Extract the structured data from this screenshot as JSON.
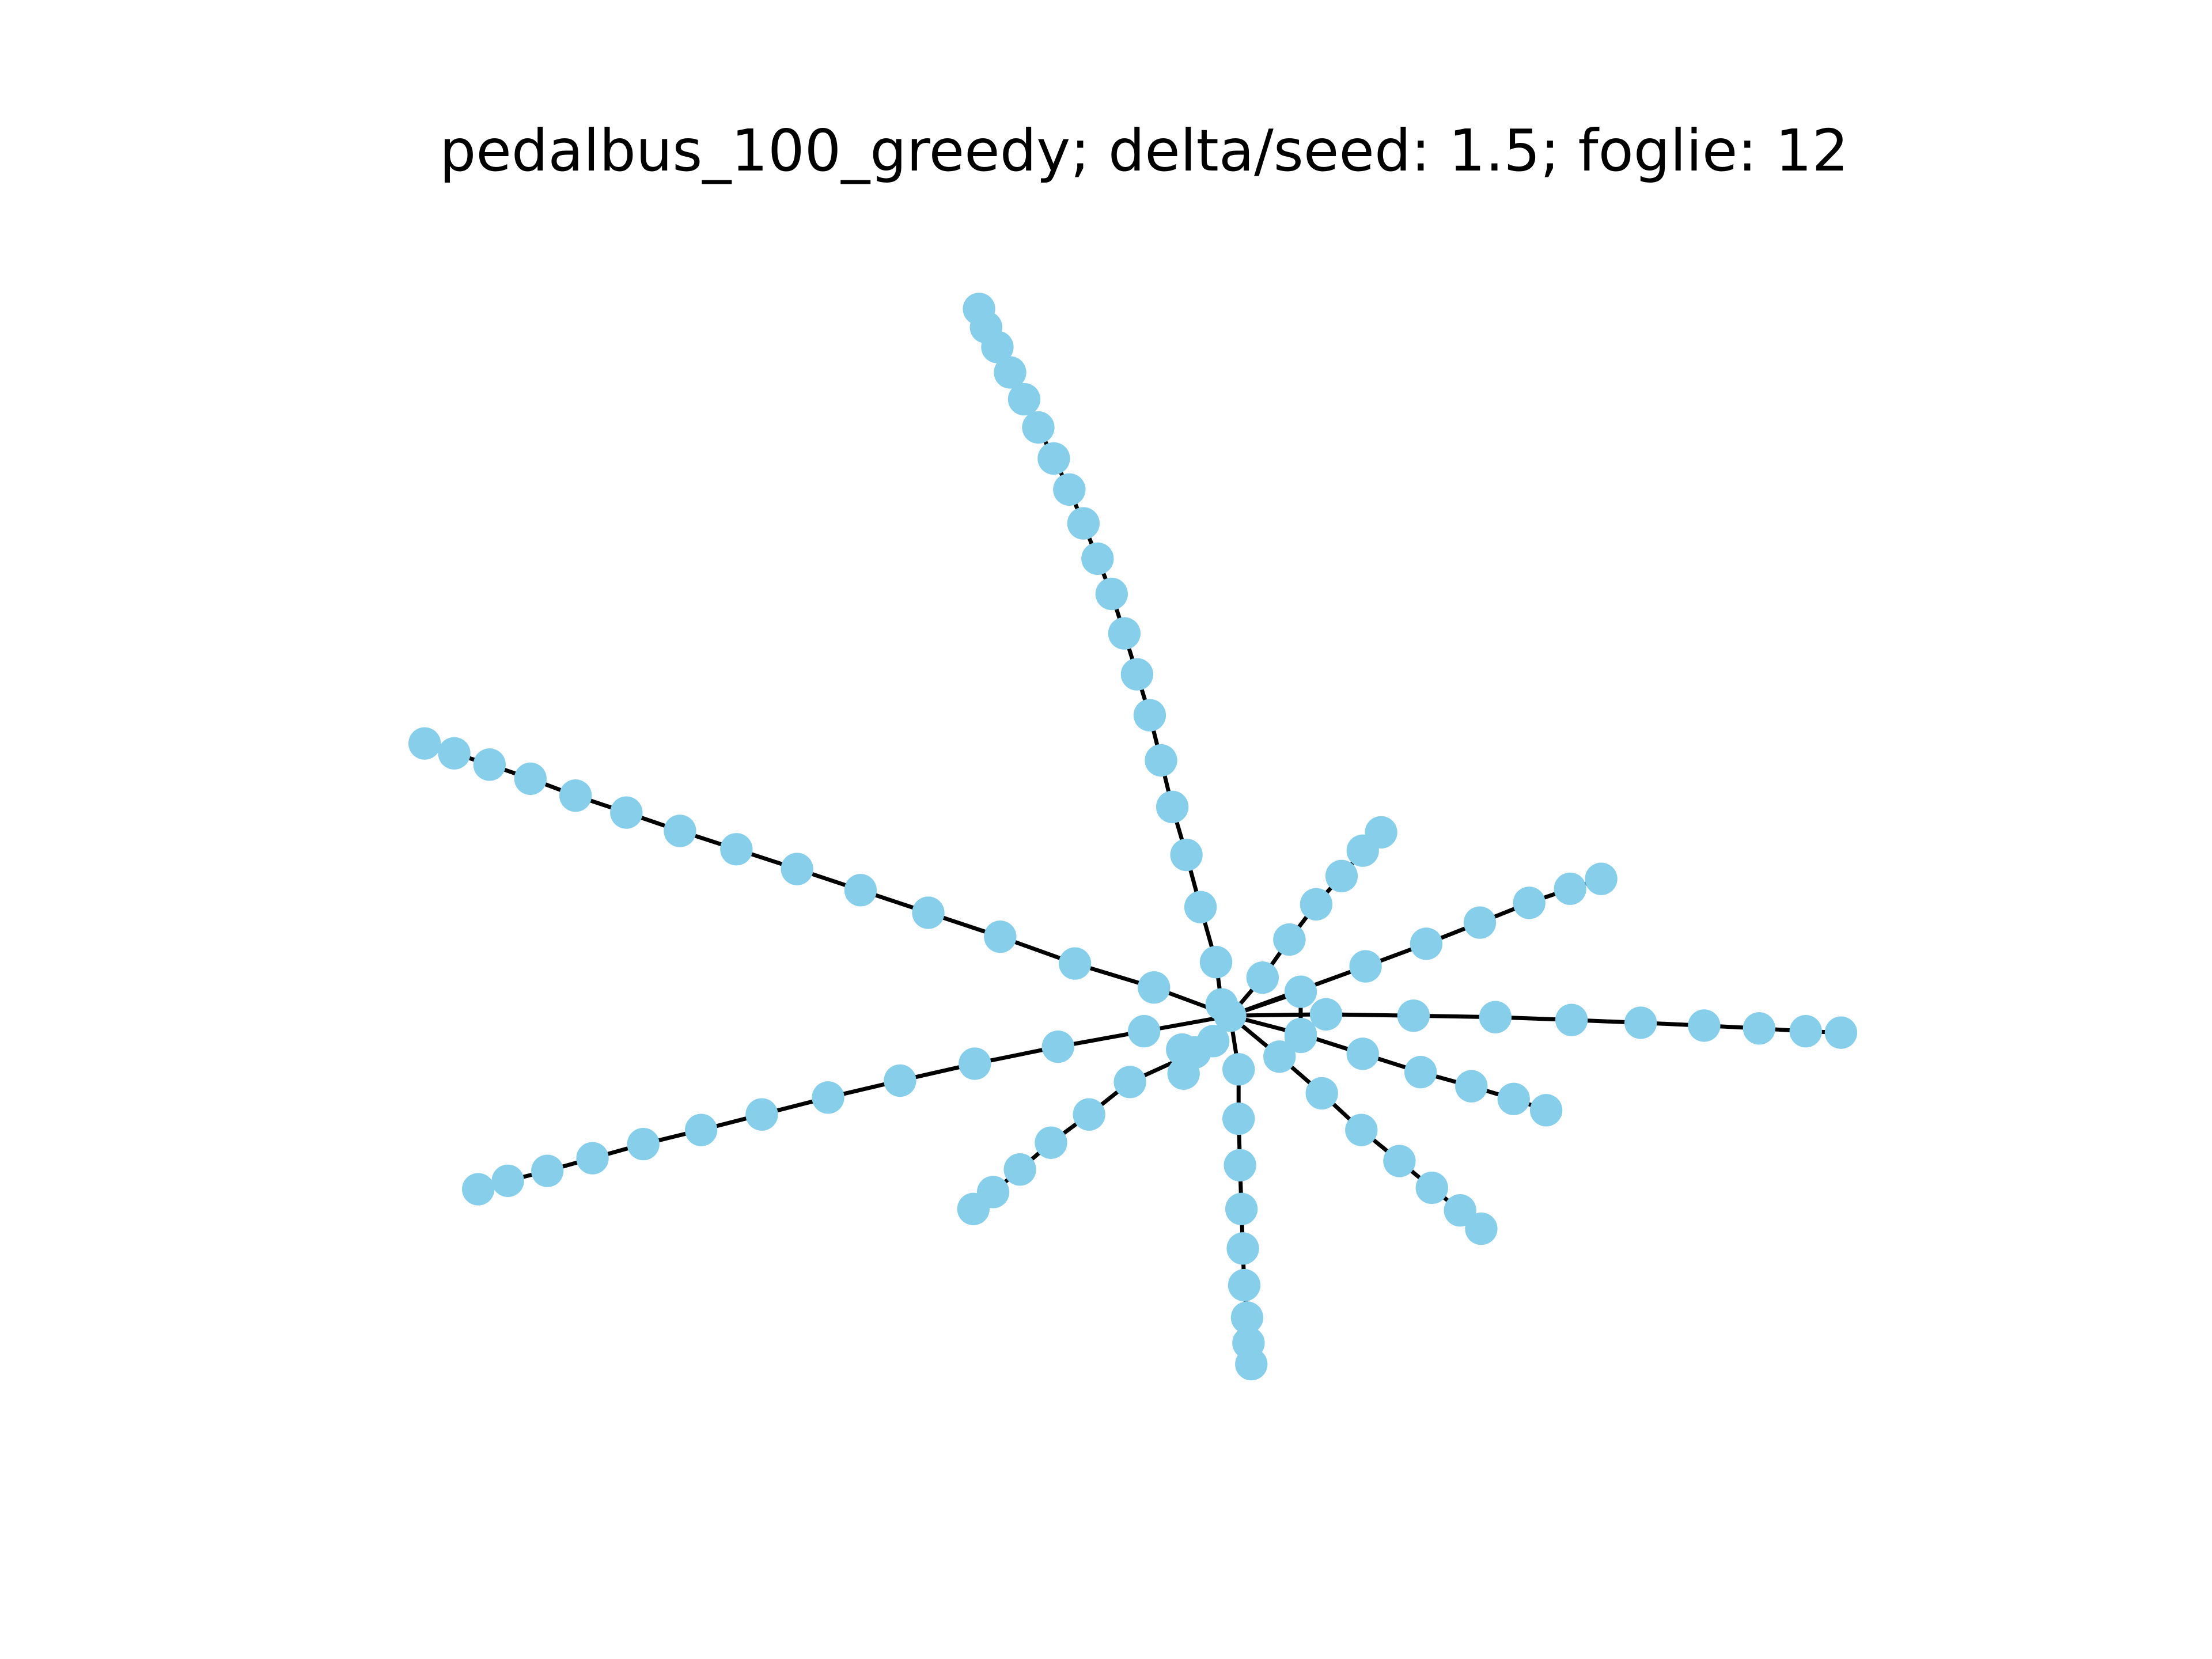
{
  "title": "pedalbus_100_greedy; delta/seed: 1.5; foglie: 12",
  "graph": {
    "node_color": "#87CEEB",
    "edge_color": "#000000",
    "background": "#ffffff",
    "node_count": 100,
    "leaf_count": 12
  }
}
